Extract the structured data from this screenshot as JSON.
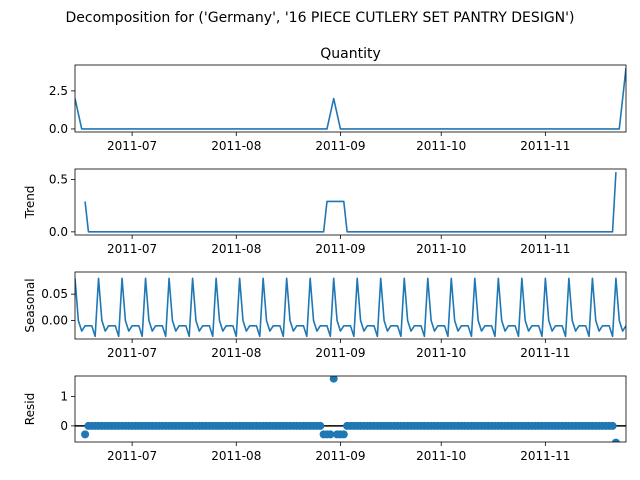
{
  "figure": {
    "suptitle": "Decomposition for ('Germany', '16 PIECE CUTLERY SET PANTRY DESIGN')"
  },
  "chart_data": [
    {
      "type": "line",
      "title": "Quantity",
      "ylabel": "",
      "xlim": [
        "2011-06-14",
        "2011-11-25"
      ],
      "ylim": [
        -0.2,
        4.2
      ],
      "yticks": [
        {
          "v": 0.0,
          "label": "0.0"
        },
        {
          "v": 2.5,
          "label": "2.5"
        }
      ],
      "xticks": [
        "2011-07",
        "2011-08",
        "2011-09",
        "2011-10",
        "2011-11"
      ],
      "color": "#1f77b4",
      "series": [
        {
          "x": [
            "2011-06-14",
            "2011-06-16",
            "2011-08-28",
            "2011-08-30",
            "2011-09-01",
            "2011-11-23",
            "2011-11-25"
          ],
          "values": [
            2.0,
            0.0,
            0.0,
            2.0,
            0.0,
            0.0,
            4.0
          ]
        }
      ]
    },
    {
      "type": "line",
      "title": "",
      "ylabel": "Trend",
      "xlim": [
        "2011-06-14",
        "2011-11-25"
      ],
      "ylim": [
        -0.03,
        0.6
      ],
      "yticks": [
        {
          "v": 0.0,
          "label": "0.0"
        },
        {
          "v": 0.5,
          "label": "0.5"
        }
      ],
      "xticks": [
        "2011-07",
        "2011-08",
        "2011-09",
        "2011-10",
        "2011-11"
      ],
      "color": "#1f77b4",
      "series": [
        {
          "x": [
            "2011-06-17",
            "2011-06-18",
            "2011-08-27",
            "2011-08-28",
            "2011-09-02",
            "2011-09-03",
            "2011-11-21",
            "2011-11-22"
          ],
          "values": [
            0.29,
            0.0,
            0.0,
            0.29,
            0.29,
            0.0,
            0.0,
            0.57
          ]
        }
      ]
    },
    {
      "type": "line",
      "title": "",
      "ylabel": "Seasonal",
      "xlim": [
        "2011-06-14",
        "2011-11-25"
      ],
      "ylim": [
        -0.035,
        0.092
      ],
      "yticks": [
        {
          "v": 0.0,
          "label": "0.00"
        },
        {
          "v": 0.05,
          "label": "0.05"
        }
      ],
      "xticks": [
        "2011-07",
        "2011-08",
        "2011-09",
        "2011-10",
        "2011-11"
      ],
      "color": "#1f77b4",
      "period_start": "2011-06-14",
      "period_pattern": [
        0.08,
        0.0,
        -0.02,
        -0.01,
        -0.01,
        -0.01,
        -0.03
      ]
    },
    {
      "type": "scatter",
      "title": "",
      "ylabel": "Resid",
      "xlim": [
        "2011-06-14",
        "2011-11-25"
      ],
      "ylim": [
        -0.55,
        1.7
      ],
      "yticks": [
        {
          "v": 0.0,
          "label": "0"
        },
        {
          "v": 1.0,
          "label": "1"
        }
      ],
      "xticks": [
        "2011-07",
        "2011-08",
        "2011-09",
        "2011-10",
        "2011-11"
      ],
      "color": "#1f77b4",
      "baseline": 0,
      "series": [
        {
          "x_start": "2011-06-17",
          "x_end": "2011-11-22",
          "default": 0.0,
          "overrides": {
            "2011-06-17": -0.29,
            "2011-08-27": -0.29,
            "2011-08-28": -0.29,
            "2011-08-29": -0.29,
            "2011-08-30": 1.61,
            "2011-08-31": -0.29,
            "2011-09-01": -0.29,
            "2011-09-02": -0.29,
            "2011-11-22": -0.57
          }
        }
      ]
    }
  ]
}
